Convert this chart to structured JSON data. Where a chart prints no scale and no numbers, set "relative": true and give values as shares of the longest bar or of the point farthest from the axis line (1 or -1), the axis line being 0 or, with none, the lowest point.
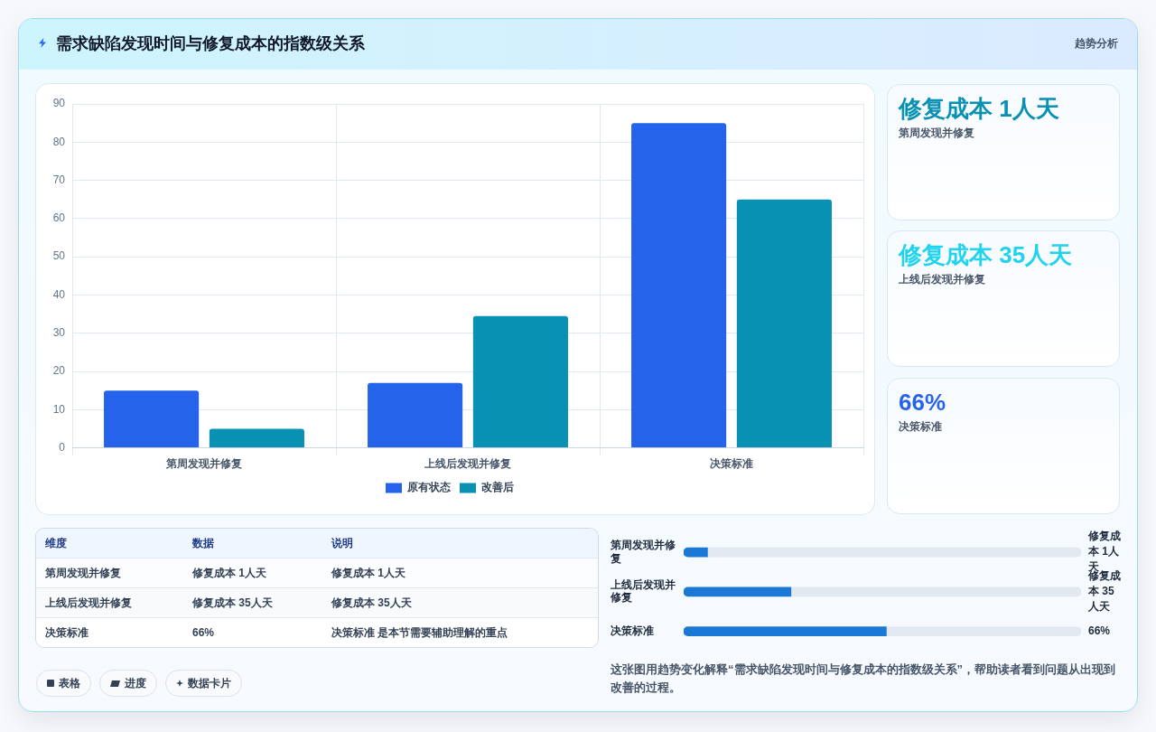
{
  "chart_data": [
    {
      "type": "bar",
      "title": "需求缺陷发现时间与修复成本的指数级关系",
      "categories": [
        "第周发现并修复",
        "上线后发现并修复",
        "决策标准"
      ],
      "series": [
        {
          "name": "原有状态",
          "color": "#2563eb",
          "values": [
            15,
            17,
            85
          ]
        },
        {
          "name": "改善后",
          "color": "#0891b2",
          "values": [
            5,
            34.5,
            65
          ]
        }
      ],
      "ylim": [
        0,
        90
      ],
      "yticks": [
        0,
        10,
        20,
        30,
        40,
        50,
        60,
        70,
        80,
        90
      ],
      "grid": true,
      "legend": "bottom"
    },
    {
      "type": "other",
      "title": "趋势分析",
      "annotations": [
        "修复成本 1人天",
        "第周发现并修复",
        "修复成本 35人天",
        "上线后发现并修复",
        "66%",
        "决策标准"
      ]
    },
    {
      "type": "other",
      "annotations": [
        "维度",
        "数据",
        "说明",
        "第周发现并修复",
        "修复成本 1人天",
        "修复成本 1人天",
        "上线后发现并修复",
        "修复成本 35人天",
        "修复成本 35人天",
        "决策标准",
        "66%",
        "决策标准 是本节需要辅助理解的重点"
      ]
    },
    {
      "type": "bar",
      "orientation": "horizontal",
      "stacked": true,
      "relative": true,
      "categories": [
        "第周发现并修复",
        "上线后发现并修复",
        "决策标准"
      ],
      "series": [
        {
          "color": "#1b78d4",
          "values": [
            0.06,
            0.27,
            0.51
          ]
        },
        {
          "color": "#e2e8f0",
          "values": [
            0.94,
            0.73,
            0.49
          ]
        }
      ],
      "annotations": [
        "修复成本 1人天",
        "修复成本 35人天",
        "66%",
        "这张图用趋势变化解释“需求缺陷发现时间与修复成本的指数级关系”，帮助读者看到问题从出现到改善的过程。"
      ]
    },
    {
      "type": "other",
      "annotations": [
        "表格",
        "进度",
        "数据卡片"
      ]
    }
  ]
}
